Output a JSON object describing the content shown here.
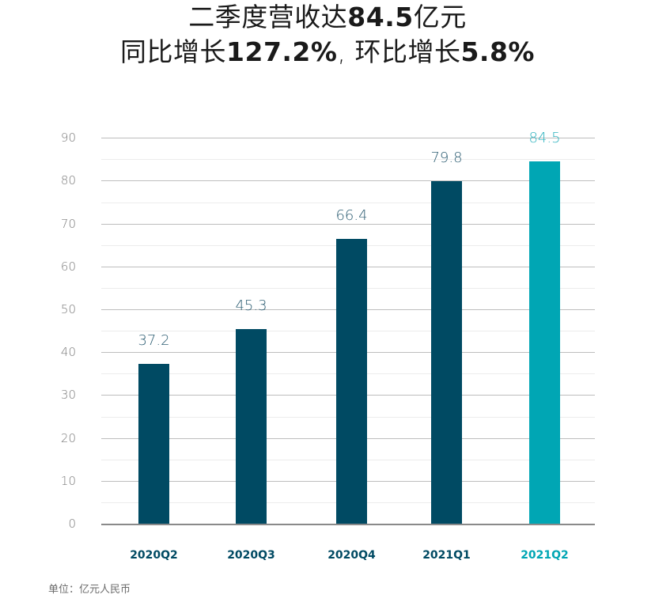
{
  "title": {
    "line1_prefix": "二季度营收达",
    "line1_bold": "84.5",
    "line1_suffix": "亿元",
    "line2_a": "同比增长",
    "line2_bold_a": "127.2%",
    "line2_b": ", 环比增长",
    "line2_bold_b": "5.8%"
  },
  "footnote": "单位：亿元人民币",
  "colors": {
    "primary_bar": "#004a63",
    "highlight_bar": "#00a6b4",
    "primary_label": "#2f5f74",
    "highlight_label": "#2fb3bf"
  },
  "chart_data": {
    "type": "bar",
    "title": "二季度营收达84.5亿元 同比增长127.2%，环比增长5.8%",
    "categories": [
      "2020Q2",
      "2020Q3",
      "2020Q4",
      "2021Q1",
      "2021Q2"
    ],
    "values": [
      37.2,
      45.3,
      66.4,
      79.8,
      84.5
    ],
    "value_labels": [
      "37.2",
      "45.3",
      "66.4",
      "79.8",
      "84.5"
    ],
    "highlight_index": 4,
    "xlabel": "",
    "ylabel": "",
    "unit": "亿元人民币",
    "ylim": [
      0,
      90
    ],
    "yticks": [
      "0",
      "10",
      "20",
      "30",
      "40",
      "50",
      "60",
      "70",
      "80",
      "90"
    ],
    "grid": true,
    "legend": "none"
  }
}
